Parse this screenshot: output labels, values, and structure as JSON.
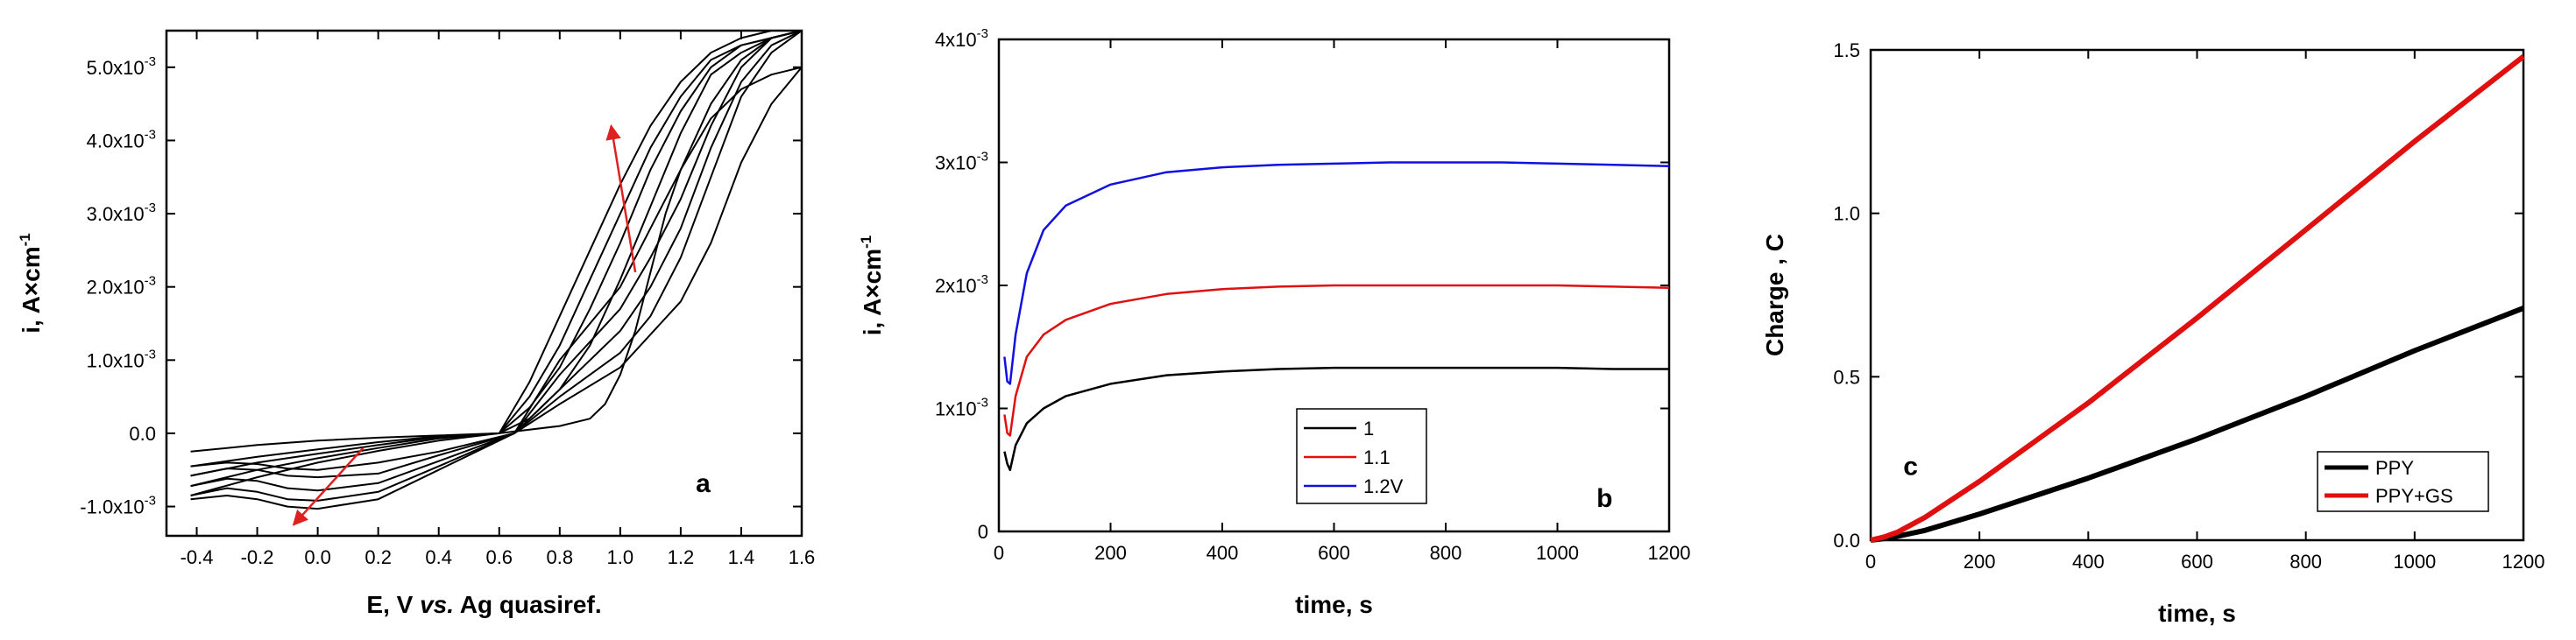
{
  "colors": {
    "black": "#000000",
    "red": "#e01010",
    "blue": "#1010e0",
    "arrow": "#e02020"
  },
  "chart_data": [
    {
      "panel": "a",
      "type": "line",
      "xlabel_parts": [
        "E, V ",
        "vs.",
        " Ag quasiref."
      ],
      "ylabel": "i, A×cm",
      "ylabel_sup": "-1",
      "xlim": [
        -0.5,
        1.6
      ],
      "ylim": [
        -0.0014,
        0.0055
      ],
      "x_ticks": [
        {
          "v": -0.4,
          "label": "-0.4"
        },
        {
          "v": -0.2,
          "label": "-0.2"
        },
        {
          "v": 0.0,
          "label": "0.0"
        },
        {
          "v": 0.2,
          "label": "0.2"
        },
        {
          "v": 0.4,
          "label": "0.4"
        },
        {
          "v": 0.6,
          "label": "0.6"
        },
        {
          "v": 0.8,
          "label": "0.8"
        },
        {
          "v": 1.0,
          "label": "1.0"
        },
        {
          "v": 1.2,
          "label": "1.2"
        },
        {
          "v": 1.4,
          "label": "1.4"
        },
        {
          "v": 1.6,
          "label": "1.6"
        }
      ],
      "y_ticks": [
        {
          "v": -0.001,
          "mant": "-1.0x10",
          "exp": "-3"
        },
        {
          "v": 0.0,
          "mant": "0.0",
          "exp": ""
        },
        {
          "v": 0.001,
          "mant": "1.0x10",
          "exp": "-3"
        },
        {
          "v": 0.002,
          "mant": "2.0x10",
          "exp": "-3"
        },
        {
          "v": 0.003,
          "mant": "3.0x10",
          "exp": "-3"
        },
        {
          "v": 0.004,
          "mant": "4.0x10",
          "exp": "-3"
        },
        {
          "v": 0.005,
          "mant": "5.0x10",
          "exp": "-3"
        }
      ],
      "cycles": [
        {
          "forward": [
            [
              -0.42,
              -0.00025
            ],
            [
              -0.2,
              -0.00016
            ],
            [
              0.0,
              -0.0001
            ],
            [
              0.2,
              -6e-05
            ],
            [
              0.4,
              -3e-05
            ],
            [
              0.6,
              0.0
            ],
            [
              0.8,
              0.0001
            ],
            [
              0.9,
              0.0002
            ],
            [
              0.95,
              0.0004
            ],
            [
              1.0,
              0.0008
            ],
            [
              1.05,
              0.0014
            ],
            [
              1.1,
              0.0022
            ],
            [
              1.15,
              0.003
            ],
            [
              1.2,
              0.0036
            ],
            [
              1.3,
              0.0043
            ],
            [
              1.4,
              0.0047
            ],
            [
              1.5,
              0.0049
            ],
            [
              1.6,
              0.005
            ]
          ],
          "reverse": [
            [
              1.6,
              0.005
            ],
            [
              1.5,
              0.0045
            ],
            [
              1.4,
              0.0037
            ],
            [
              1.3,
              0.0026
            ],
            [
              1.2,
              0.0018
            ],
            [
              1.0,
              0.0009
            ],
            [
              0.8,
              0.0004
            ],
            [
              0.65,
              0.0
            ],
            [
              0.4,
              -0.00025
            ],
            [
              0.2,
              -0.0004
            ],
            [
              0.0,
              -0.0005
            ],
            [
              -0.1,
              -0.00048
            ],
            [
              -0.2,
              -0.00042
            ],
            [
              -0.3,
              -0.0004
            ],
            [
              -0.42,
              -0.00045
            ]
          ]
        },
        {
          "forward": [
            [
              -0.42,
              -0.00045
            ],
            [
              -0.2,
              -0.00032
            ],
            [
              0.0,
              -0.00022
            ],
            [
              0.2,
              -0.00012
            ],
            [
              0.4,
              -4e-05
            ],
            [
              0.6,
              0.0
            ],
            [
              0.7,
              0.0002
            ],
            [
              0.8,
              0.0006
            ],
            [
              0.9,
              0.0012
            ],
            [
              1.0,
              0.0021
            ],
            [
              1.1,
              0.0031
            ],
            [
              1.2,
              0.0041
            ],
            [
              1.3,
              0.0049
            ],
            [
              1.4,
              0.0052
            ],
            [
              1.5,
              0.0054
            ],
            [
              1.6,
              0.0055
            ]
          ],
          "reverse": [
            [
              1.6,
              0.0055
            ],
            [
              1.5,
              0.0052
            ],
            [
              1.4,
              0.0046
            ],
            [
              1.3,
              0.0035
            ],
            [
              1.2,
              0.0024
            ],
            [
              1.1,
              0.0016
            ],
            [
              1.0,
              0.0011
            ],
            [
              0.8,
              0.0005
            ],
            [
              0.65,
              0.0
            ],
            [
              0.4,
              -0.0003
            ],
            [
              0.2,
              -0.00055
            ],
            [
              0.0,
              -0.0006
            ],
            [
              -0.1,
              -0.00058
            ],
            [
              -0.2,
              -0.0005
            ],
            [
              -0.3,
              -0.00048
            ],
            [
              -0.42,
              -0.00058
            ]
          ]
        },
        {
          "forward": [
            [
              -0.42,
              -0.00058
            ],
            [
              -0.2,
              -0.0004
            ],
            [
              0.0,
              -0.00028
            ],
            [
              0.2,
              -0.00016
            ],
            [
              0.4,
              -5e-05
            ],
            [
              0.6,
              0.0
            ],
            [
              0.7,
              0.00035
            ],
            [
              0.8,
              0.0009
            ],
            [
              0.9,
              0.0017
            ],
            [
              1.0,
              0.0026
            ],
            [
              1.1,
              0.0036
            ],
            [
              1.2,
              0.0044
            ],
            [
              1.3,
              0.005
            ],
            [
              1.4,
              0.0053
            ],
            [
              1.5,
              0.0054
            ],
            [
              1.6,
              0.0055
            ]
          ],
          "reverse": [
            [
              1.6,
              0.0055
            ],
            [
              1.5,
              0.0053
            ],
            [
              1.4,
              0.0048
            ],
            [
              1.3,
              0.0039
            ],
            [
              1.2,
              0.0028
            ],
            [
              1.1,
              0.002
            ],
            [
              1.0,
              0.0014
            ],
            [
              0.8,
              0.0006
            ],
            [
              0.65,
              0.0
            ],
            [
              0.4,
              -0.00038
            ],
            [
              0.2,
              -0.00068
            ],
            [
              0.0,
              -0.00078
            ],
            [
              -0.1,
              -0.00075
            ],
            [
              -0.2,
              -0.00065
            ],
            [
              -0.3,
              -0.00062
            ],
            [
              -0.42,
              -0.00072
            ]
          ]
        },
        {
          "forward": [
            [
              -0.42,
              -0.00072
            ],
            [
              -0.2,
              -0.0005
            ],
            [
              0.0,
              -0.00034
            ],
            [
              0.2,
              -0.0002
            ],
            [
              0.4,
              -7e-05
            ],
            [
              0.6,
              0.0
            ],
            [
              0.7,
              0.0005
            ],
            [
              0.8,
              0.0012
            ],
            [
              0.9,
              0.0021
            ],
            [
              1.0,
              0.003
            ],
            [
              1.1,
              0.0039
            ],
            [
              1.2,
              0.0046
            ],
            [
              1.3,
              0.0051
            ],
            [
              1.4,
              0.0053
            ],
            [
              1.5,
              0.0054
            ],
            [
              1.6,
              0.0055
            ]
          ],
          "reverse": [
            [
              1.6,
              0.0055
            ],
            [
              1.5,
              0.0054
            ],
            [
              1.4,
              0.005
            ],
            [
              1.3,
              0.0042
            ],
            [
              1.2,
              0.0032
            ],
            [
              1.1,
              0.0024
            ],
            [
              1.0,
              0.0017
            ],
            [
              0.8,
              0.0008
            ],
            [
              0.65,
              0.0
            ],
            [
              0.4,
              -0.00045
            ],
            [
              0.2,
              -0.0008
            ],
            [
              0.0,
              -0.00092
            ],
            [
              -0.1,
              -0.0009
            ],
            [
              -0.2,
              -0.0008
            ],
            [
              -0.3,
              -0.00075
            ],
            [
              -0.42,
              -0.00085
            ]
          ]
        },
        {
          "forward": [
            [
              -0.42,
              -0.00085
            ],
            [
              -0.2,
              -0.0006
            ],
            [
              0.0,
              -0.0004
            ],
            [
              0.2,
              -0.00024
            ],
            [
              0.4,
              -0.0001
            ],
            [
              0.6,
              0.0
            ],
            [
              0.7,
              0.0007
            ],
            [
              0.8,
              0.0016
            ],
            [
              0.9,
              0.0025
            ],
            [
              1.0,
              0.0034
            ],
            [
              1.1,
              0.0042
            ],
            [
              1.2,
              0.0048
            ],
            [
              1.3,
              0.0052
            ],
            [
              1.4,
              0.0054
            ],
            [
              1.5,
              0.0055
            ],
            [
              1.6,
              0.0055
            ]
          ],
          "reverse": [
            [
              1.6,
              0.0055
            ],
            [
              1.5,
              0.0054
            ],
            [
              1.4,
              0.0051
            ],
            [
              1.3,
              0.0045
            ],
            [
              1.2,
              0.0036
            ],
            [
              1.1,
              0.0028
            ],
            [
              1.0,
              0.002
            ],
            [
              0.8,
              0.001
            ],
            [
              0.65,
              0.0
            ],
            [
              0.4,
              -0.0005
            ],
            [
              0.2,
              -0.0009
            ],
            [
              0.0,
              -0.00103
            ],
            [
              -0.1,
              -0.001
            ],
            [
              -0.2,
              -0.0009
            ],
            [
              -0.3,
              -0.00085
            ],
            [
              -0.42,
              -0.0009
            ]
          ]
        }
      ],
      "arrows": [
        {
          "from": [
            1.05,
            0.0022
          ],
          "to": [
            0.97,
            0.0042
          ]
        },
        {
          "from": [
            0.15,
            -0.0002
          ],
          "to": [
            -0.08,
            -0.00125
          ]
        }
      ],
      "label_text": "a",
      "label_at": [
        1.25,
        -0.0008
      ]
    },
    {
      "panel": "b",
      "type": "line",
      "xlabel": "time, s",
      "ylabel": "i, A×cm",
      "ylabel_sup": "-1",
      "xlim": [
        0,
        1200
      ],
      "ylim": [
        0,
        0.004
      ],
      "x_ticks": [
        {
          "v": 0,
          "label": "0"
        },
        {
          "v": 200,
          "label": "200"
        },
        {
          "v": 400,
          "label": "400"
        },
        {
          "v": 600,
          "label": "600"
        },
        {
          "v": 800,
          "label": "800"
        },
        {
          "v": 1000,
          "label": "1000"
        },
        {
          "v": 1200,
          "label": "1200"
        }
      ],
      "y_ticks": [
        {
          "v": 0,
          "mant": "0",
          "exp": ""
        },
        {
          "v": 0.001,
          "mant": "1x10",
          "exp": "-3"
        },
        {
          "v": 0.002,
          "mant": "2x10",
          "exp": "-3"
        },
        {
          "v": 0.003,
          "mant": "3x10",
          "exp": "-3"
        },
        {
          "v": 0.004,
          "mant": "4x10",
          "exp": "-3"
        }
      ],
      "series": [
        {
          "name": "1",
          "color": "#000000",
          "x": [
            10,
            15,
            20,
            30,
            50,
            80,
            120,
            200,
            300,
            400,
            500,
            600,
            700,
            800,
            900,
            1000,
            1100,
            1200
          ],
          "y": [
            0.00065,
            0.00055,
            0.0005,
            0.0007,
            0.00088,
            0.001,
            0.0011,
            0.0012,
            0.00127,
            0.0013,
            0.00132,
            0.00133,
            0.00133,
            0.00133,
            0.00133,
            0.00133,
            0.00132,
            0.00132
          ]
        },
        {
          "name": "1.1",
          "color": "#e01010",
          "x": [
            10,
            15,
            20,
            30,
            50,
            80,
            120,
            200,
            300,
            400,
            500,
            600,
            700,
            800,
            900,
            1000,
            1100,
            1200
          ],
          "y": [
            0.00095,
            0.0008,
            0.00078,
            0.0011,
            0.00142,
            0.0016,
            0.00172,
            0.00185,
            0.00193,
            0.00197,
            0.00199,
            0.002,
            0.002,
            0.002,
            0.002,
            0.002,
            0.00199,
            0.00198
          ]
        },
        {
          "name": "1.2V",
          "color": "#1010e0",
          "x": [
            10,
            15,
            20,
            30,
            50,
            80,
            120,
            200,
            300,
            400,
            500,
            600,
            700,
            800,
            900,
            1000,
            1100,
            1200
          ],
          "y": [
            0.00142,
            0.00122,
            0.0012,
            0.0016,
            0.0021,
            0.00245,
            0.00265,
            0.00282,
            0.00292,
            0.00296,
            0.00298,
            0.00299,
            0.003,
            0.003,
            0.003,
            0.00299,
            0.00298,
            0.00297
          ]
        }
      ],
      "legend": [
        "1",
        "1.1",
        "1.2V"
      ],
      "label_text": "b",
      "label_at": [
        1070,
        0.0002
      ]
    },
    {
      "panel": "c",
      "type": "line",
      "xlabel": "time, s",
      "ylabel": "Charge , C",
      "xlim": [
        0,
        1200
      ],
      "ylim": [
        0,
        1.5
      ],
      "x_ticks": [
        {
          "v": 0,
          "label": "0"
        },
        {
          "v": 200,
          "label": "200"
        },
        {
          "v": 400,
          "label": "400"
        },
        {
          "v": 600,
          "label": "600"
        },
        {
          "v": 800,
          "label": "800"
        },
        {
          "v": 1000,
          "label": "1000"
        },
        {
          "v": 1200,
          "label": "1200"
        }
      ],
      "y_ticks": [
        {
          "v": 0,
          "label": "0.0"
        },
        {
          "v": 0.5,
          "label": "0.5"
        },
        {
          "v": 1.0,
          "label": "1.0"
        },
        {
          "v": 1.5,
          "label": "1.5"
        }
      ],
      "series": [
        {
          "name": "PPY",
          "color": "#000000",
          "x": [
            0,
            25,
            50,
            100,
            200,
            300,
            400,
            600,
            800,
            1000,
            1200
          ],
          "y": [
            0,
            0.005,
            0.012,
            0.03,
            0.08,
            0.135,
            0.19,
            0.31,
            0.44,
            0.58,
            0.71
          ]
        },
        {
          "name": "PPY+GS",
          "color": "#e01010",
          "x": [
            0,
            25,
            50,
            100,
            200,
            300,
            400,
            600,
            800,
            1000,
            1200
          ],
          "y": [
            0,
            0.01,
            0.025,
            0.07,
            0.18,
            0.3,
            0.42,
            0.68,
            0.95,
            1.22,
            1.48
          ]
        }
      ],
      "legend": [
        "PPY",
        "PPY+GS"
      ],
      "label_text": "c",
      "label_at": [
        60,
        0.2
      ]
    }
  ]
}
